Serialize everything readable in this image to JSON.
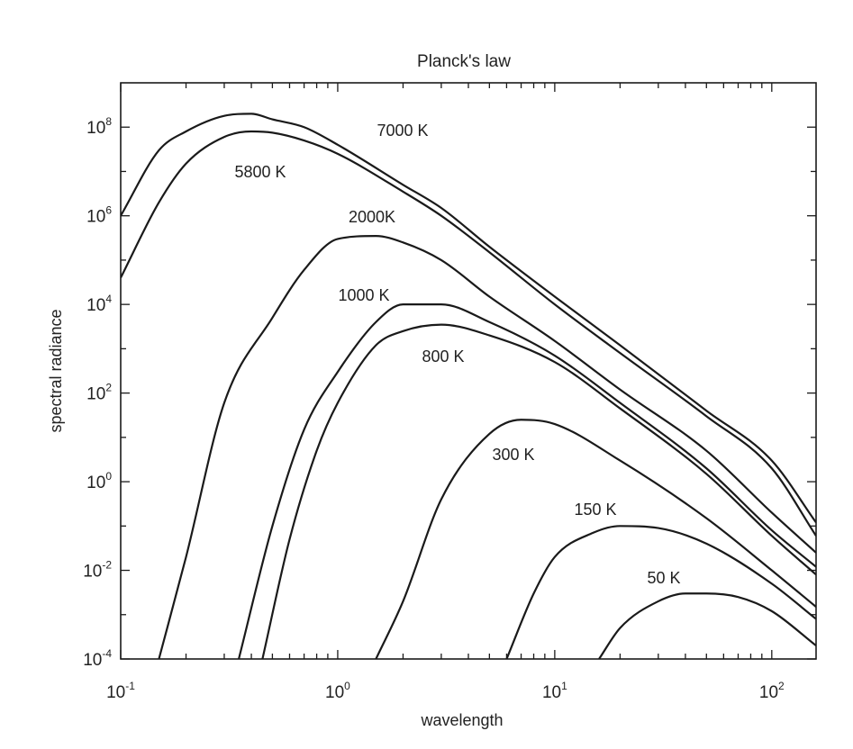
{
  "chart_data": {
    "type": "line",
    "title": "Planck's law",
    "xlabel": "wavelength",
    "ylabel": "spectral radiance",
    "xscale": "log",
    "yscale": "log",
    "xlim": [
      0.1,
      160
    ],
    "ylim": [
      0.0001,
      1000000000
    ],
    "grid": false,
    "x_ticks": [
      {
        "base": "10",
        "exp": "-1",
        "value": 0.1
      },
      {
        "base": "10",
        "exp": "0",
        "value": 1
      },
      {
        "base": "10",
        "exp": "1",
        "value": 10
      },
      {
        "base": "10",
        "exp": "2",
        "value": 100
      }
    ],
    "y_ticks": [
      {
        "base": "10",
        "exp": "-4",
        "value": 0.0001
      },
      {
        "base": "10",
        "exp": "-2",
        "value": 0.01
      },
      {
        "base": "10",
        "exp": "0",
        "value": 1
      },
      {
        "base": "10",
        "exp": "2",
        "value": 100
      },
      {
        "base": "10",
        "exp": "4",
        "value": 10000
      },
      {
        "base": "10",
        "exp": "6",
        "value": 1000000
      },
      {
        "base": "10",
        "exp": "8",
        "value": 100000000
      }
    ],
    "series": [
      {
        "name": "7000 K",
        "x": [
          0.1,
          0.15,
          0.2,
          0.3,
          0.4,
          0.5,
          0.7,
          1,
          2,
          3,
          5,
          10,
          20,
          50,
          100,
          160
        ],
        "y": [
          1000000,
          30000000,
          80000000,
          180000000,
          200000000,
          150000000,
          100000000,
          40000000,
          5000000,
          1500000,
          200000,
          15000,
          1200,
          40,
          3,
          0.12
        ]
      },
      {
        "name": "5800 K",
        "x": [
          0.1,
          0.15,
          0.2,
          0.3,
          0.4,
          0.5,
          0.7,
          1,
          2,
          3,
          5,
          10,
          20,
          50,
          100,
          160
        ],
        "y": [
          40000,
          2000000,
          15000000,
          60000000,
          80000000,
          75000000,
          50000000,
          25000000,
          3500000,
          1000000,
          150000,
          10000,
          800,
          30,
          2,
          0.06
        ]
      },
      {
        "name": "2000K",
        "x": [
          0.15,
          0.2,
          0.3,
          0.5,
          0.7,
          1,
          1.5,
          2,
          3,
          5,
          10,
          20,
          50,
          100,
          160
        ],
        "y": [
          0.0001,
          0.02,
          60,
          5000,
          60000,
          300000,
          350000,
          250000,
          100000,
          15000,
          1500,
          120,
          5,
          0.2,
          0.025
        ]
      },
      {
        "name": "1000 K",
        "x": [
          0.35,
          0.5,
          0.7,
          1,
          1.5,
          2,
          3,
          5,
          10,
          20,
          50,
          100,
          160
        ],
        "y": [
          0.0001,
          0.1,
          15,
          300,
          4000,
          10000,
          10000,
          4000,
          700,
          60,
          2,
          0.08,
          0.012
        ]
      },
      {
        "name": "800 K",
        "x": [
          0.45,
          0.6,
          0.8,
          1,
          1.5,
          2,
          3,
          5,
          10,
          20,
          50,
          100,
          160
        ],
        "y": [
          0.0001,
          0.05,
          5,
          60,
          1200,
          2500,
          3500,
          2000,
          500,
          45,
          1.5,
          0.06,
          0.008
        ]
      },
      {
        "name": "300 K",
        "x": [
          1.5,
          2,
          3,
          5,
          7,
          10,
          20,
          50,
          100,
          160
        ],
        "y": [
          0.0001,
          0.002,
          0.4,
          12,
          25,
          20,
          3,
          0.15,
          0.01,
          0.0015
        ]
      },
      {
        "name": "150 K",
        "x": [
          6,
          8,
          10,
          15,
          20,
          30,
          50,
          100,
          160
        ],
        "y": [
          0.0001,
          0.003,
          0.02,
          0.07,
          0.1,
          0.09,
          0.04,
          0.005,
          0.0008
        ]
      },
      {
        "name": "50 K",
        "x": [
          16,
          20,
          30,
          40,
          50,
          70,
          100,
          160
        ],
        "y": [
          0.0001,
          0.0005,
          0.002,
          0.003,
          0.003,
          0.0025,
          0.0012,
          0.0002
        ]
      }
    ]
  }
}
